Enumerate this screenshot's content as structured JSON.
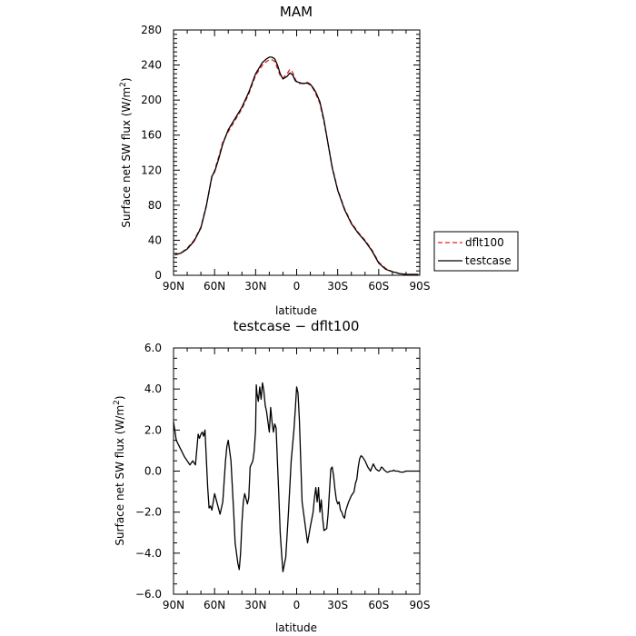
{
  "chart_data": [
    {
      "type": "line",
      "title": "MAM",
      "xlabel": "latitude",
      "ylabel": "Surface net SW flux (W/m²)",
      "ylabel_main": "Surface net SW flux (W/m",
      "ylabel_sup": "2",
      "ylabel_end": ")",
      "xlim": [
        90,
        -90
      ],
      "ylim": [
        0,
        280
      ],
      "xticks": [
        90,
        60,
        30,
        0,
        -30,
        -60,
        -90
      ],
      "xtick_labels": [
        "90N",
        "60N",
        "30N",
        "0",
        "30S",
        "60S",
        "90S"
      ],
      "yticks": [
        0,
        40,
        80,
        120,
        160,
        200,
        240,
        280
      ],
      "ytick_labels": [
        "0",
        "40",
        "80",
        "120",
        "160",
        "200",
        "240",
        "280"
      ],
      "legend_position": "right",
      "series": [
        {
          "name": "dflt100",
          "color": "#e8231f",
          "dash": "dashed",
          "x": [
            89,
            85,
            80,
            75,
            70,
            66,
            64,
            62,
            60,
            57,
            54,
            50,
            45,
            40,
            35,
            30,
            25,
            22,
            20,
            18,
            16,
            14,
            12,
            10,
            7,
            5,
            3,
            1,
            0,
            -2,
            -4,
            -6,
            -8,
            -10,
            -12,
            -14,
            -17,
            -20,
            -23,
            -26,
            -30,
            -35,
            -40,
            -45,
            -50,
            -55,
            -60,
            -65,
            -70,
            -73,
            -75,
            -80,
            -85,
            -89
          ],
          "y": [
            23,
            25,
            31,
            40,
            55,
            80,
            95,
            112,
            120,
            135,
            152,
            164,
            177,
            190,
            207,
            228,
            240,
            244,
            246,
            246,
            244,
            236,
            228,
            225,
            230,
            235,
            232,
            224,
            221,
            219,
            219,
            219,
            219,
            217,
            213,
            207,
            196,
            175,
            150,
            124,
            98,
            76,
            60,
            49,
            40,
            29,
            15,
            8,
            4,
            3,
            2,
            1,
            1,
            1
          ]
        },
        {
          "name": "testcase",
          "color": "#000000",
          "dash": "solid",
          "x": [
            89,
            85,
            80,
            75,
            70,
            66,
            64,
            62,
            60,
            57,
            54,
            50,
            45,
            40,
            35,
            30,
            25,
            22,
            20,
            18,
            16,
            14,
            12,
            10,
            7,
            5,
            3,
            1,
            0,
            -2,
            -4,
            -6,
            -8,
            -10,
            -12,
            -14,
            -17,
            -20,
            -23,
            -26,
            -30,
            -35,
            -40,
            -45,
            -50,
            -55,
            -60,
            -65,
            -70,
            -73,
            -75,
            -80,
            -85,
            -89
          ],
          "y": [
            24,
            25,
            30,
            39,
            54,
            79,
            96,
            113,
            118,
            133,
            150,
            166,
            179,
            192,
            209,
            230,
            243,
            247,
            249,
            249,
            247,
            240,
            230,
            224,
            227,
            231,
            229,
            222,
            221,
            220,
            219,
            219,
            220,
            218,
            214,
            209,
            198,
            177,
            150,
            123,
            97,
            75,
            59,
            48,
            39,
            28,
            14,
            7,
            4,
            3,
            2,
            1,
            1,
            1
          ]
        }
      ]
    },
    {
      "type": "line",
      "title": "testcase − dflt100",
      "xlabel": "latitude",
      "ylabel": "Surface net SW flux (W/m²)",
      "ylabel_main": "Surface net SW flux (W/m",
      "ylabel_sup": "2",
      "ylabel_end": ")",
      "xlim": [
        90,
        -90
      ],
      "ylim": [
        -6,
        6
      ],
      "xticks": [
        90,
        60,
        30,
        0,
        -30,
        -60,
        -90
      ],
      "xtick_labels": [
        "90N",
        "60N",
        "30N",
        "0",
        "30S",
        "60S",
        "90S"
      ],
      "yticks": [
        -6,
        -4,
        -2,
        0,
        2,
        4,
        6
      ],
      "ytick_labels": [
        "−6.0",
        "−4.0",
        "−2.0",
        "0.0",
        "2.0",
        "4.0",
        "6.0"
      ],
      "series": [
        {
          "color": "#000000",
          "dash": "solid",
          "x": [
            90,
            88,
            85,
            82,
            78,
            76,
            74,
            72,
            71,
            70,
            69,
            68,
            67,
            66,
            65,
            64,
            63,
            62,
            61,
            60,
            58,
            56,
            55,
            54,
            53,
            52,
            51,
            50,
            48,
            46,
            45,
            44,
            43,
            42,
            41,
            40,
            39,
            38,
            36,
            35,
            34,
            32,
            31,
            30,
            29.5,
            29,
            28,
            27,
            26,
            25,
            24,
            23,
            22,
            20,
            19,
            18,
            17,
            16,
            15,
            14,
            13,
            12,
            11,
            10,
            8,
            6,
            4,
            2,
            1,
            0,
            -1,
            -2,
            -3,
            -4,
            -6,
            -8,
            -10,
            -12,
            -13,
            -14,
            -15,
            -16,
            -17,
            -18,
            -19,
            -20,
            -22,
            -23,
            -24,
            -25,
            -26,
            -27,
            -28,
            -29,
            -30,
            -31,
            -32,
            -33,
            -34,
            -35,
            -36,
            -37,
            -38,
            -40,
            -42,
            -43,
            -44,
            -45,
            -46,
            -47,
            -48,
            -50,
            -52,
            -54,
            -56,
            -58,
            -60,
            -61,
            -62,
            -63,
            -64,
            -65,
            -66,
            -67,
            -68,
            -69,
            -70,
            -71,
            -72,
            -74,
            -76,
            -78,
            -80,
            -82,
            -84,
            -86,
            -88,
            -90
          ],
          "y": [
            2.4,
            1.5,
            1.1,
            0.7,
            0.3,
            0.5,
            0.3,
            1.8,
            1.6,
            1.8,
            1.9,
            1.7,
            2.0,
            0.6,
            -0.8,
            -1.8,
            -1.7,
            -1.9,
            -1.5,
            -1.1,
            -1.6,
            -2.1,
            -1.8,
            -1.5,
            -0.5,
            0.5,
            1.2,
            1.5,
            0.5,
            -2.0,
            -3.5,
            -4.0,
            -4.5,
            -4.8,
            -4.0,
            -2.5,
            -1.5,
            -1.1,
            -1.6,
            -1.3,
            0.2,
            0.5,
            1.0,
            2.0,
            4.2,
            3.8,
            3.4,
            4.1,
            3.5,
            4.3,
            3.9,
            3.2,
            2.9,
            1.9,
            3.1,
            2.4,
            1.9,
            2.3,
            2.1,
            0.4,
            -1.2,
            -3.0,
            -4.0,
            -4.9,
            -4.2,
            -2.0,
            0.5,
            2.0,
            3.0,
            4.1,
            3.8,
            2.5,
            0.5,
            -1.5,
            -2.5,
            -3.5,
            -2.7,
            -2.0,
            -1.3,
            -0.8,
            -1.5,
            -0.8,
            -2.0,
            -1.4,
            -2.3,
            -2.9,
            -2.8,
            -2.1,
            -1.0,
            0.1,
            0.2,
            -0.2,
            -0.9,
            -1.4,
            -1.6,
            -1.5,
            -1.9,
            -2.0,
            -2.2,
            -2.3,
            -1.9,
            -1.7,
            -1.5,
            -1.2,
            -1.0,
            -0.6,
            -0.4,
            0.2,
            0.6,
            0.75,
            0.7,
            0.5,
            0.2,
            0.0,
            0.35,
            0.1,
            0.0,
            0.05,
            0.2,
            0.15,
            0.05,
            0.0,
            -0.05,
            -0.05,
            0.0,
            0.0,
            0.0,
            0.05,
            0.0,
            0.0,
            -0.05,
            -0.05,
            0.0,
            0.0,
            0.0,
            0.0,
            0.0,
            0.0
          ]
        }
      ]
    }
  ]
}
